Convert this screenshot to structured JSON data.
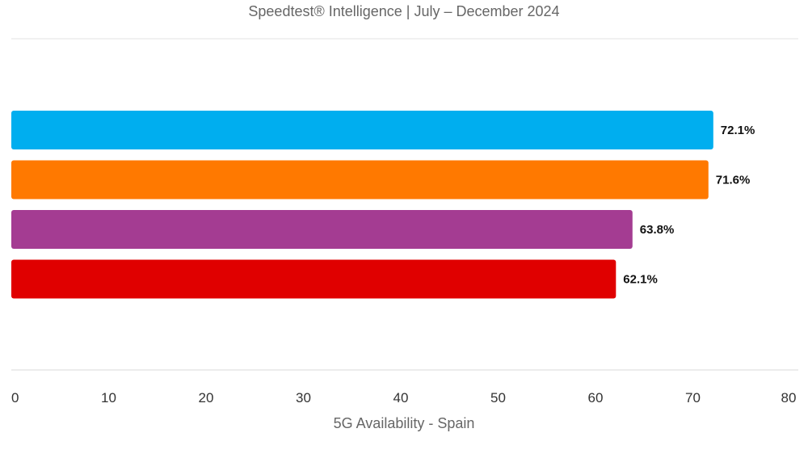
{
  "chart_data": {
    "type": "bar",
    "orientation": "horizontal",
    "subtitle": "Speedtest® Intelligence | July – December 2024",
    "xlabel": "5G Availability - Spain",
    "xlim": [
      0,
      80
    ],
    "x_ticks": [
      "0",
      "10",
      "20",
      "30",
      "40",
      "50",
      "60",
      "70",
      "80"
    ],
    "grid": false,
    "legend": "none",
    "series": [
      {
        "values": [
          72.1,
          71.6,
          63.8,
          62.1
        ],
        "labels": [
          "72.1%",
          "71.6%",
          "63.8%",
          "62.1%"
        ],
        "colors": [
          "#00aeef",
          "#ff7900",
          "#a43c92",
          "#e00000"
        ]
      }
    ]
  }
}
